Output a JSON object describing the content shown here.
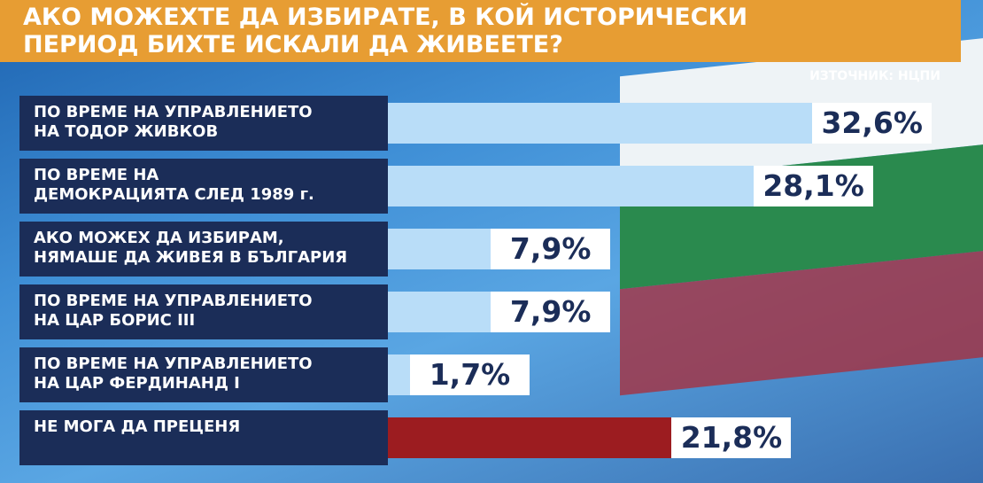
{
  "chart_data": {
    "type": "bar",
    "title": "АКО МОЖЕХТЕ ДА ИЗБИРАТЕ, В КОЙ ИСТОРИЧЕСКИ\nПЕРИОД БИХТЕ ИСКАЛИ ДА ЖИВЕЕТЕ?",
    "source": "ИЗТОЧНИК: НЦПИ",
    "categories": [
      "ПО ВРЕМЕ НА УПРАВЛЕНИЕТО\nНА ТОДОР ЖИВКОВ",
      "ПО ВРЕМЕ НА\nДЕМОКРАЦИЯТА СЛЕД 1989 г.",
      "АКО МОЖЕХ ДА ИЗБИРАМ,\nНЯМАШЕ ДА ЖИВЕЯ В БЪЛГАРИЯ",
      "ПО ВРЕМЕ НА УПРАВЛЕНИЕТО\nНА ЦАР БОРИС III",
      "ПО ВРЕМЕ НА УПРАВЛЕНИЕТО\nНА ЦАР ФЕРДИНАНД I",
      "НЕ МОГА ДА ПРЕЦЕНЯ"
    ],
    "values": [
      32.6,
      28.1,
      7.9,
      7.9,
      1.7,
      21.8
    ],
    "value_labels": [
      "32,6%",
      "28,1%",
      "7,9%",
      "7,9%",
      "1,7%",
      "21,8%"
    ],
    "colors": [
      "#b9ddf8",
      "#b9ddf8",
      "#b9ddf8",
      "#b9ddf8",
      "#b9ddf8",
      "#9c1c20"
    ]
  }
}
